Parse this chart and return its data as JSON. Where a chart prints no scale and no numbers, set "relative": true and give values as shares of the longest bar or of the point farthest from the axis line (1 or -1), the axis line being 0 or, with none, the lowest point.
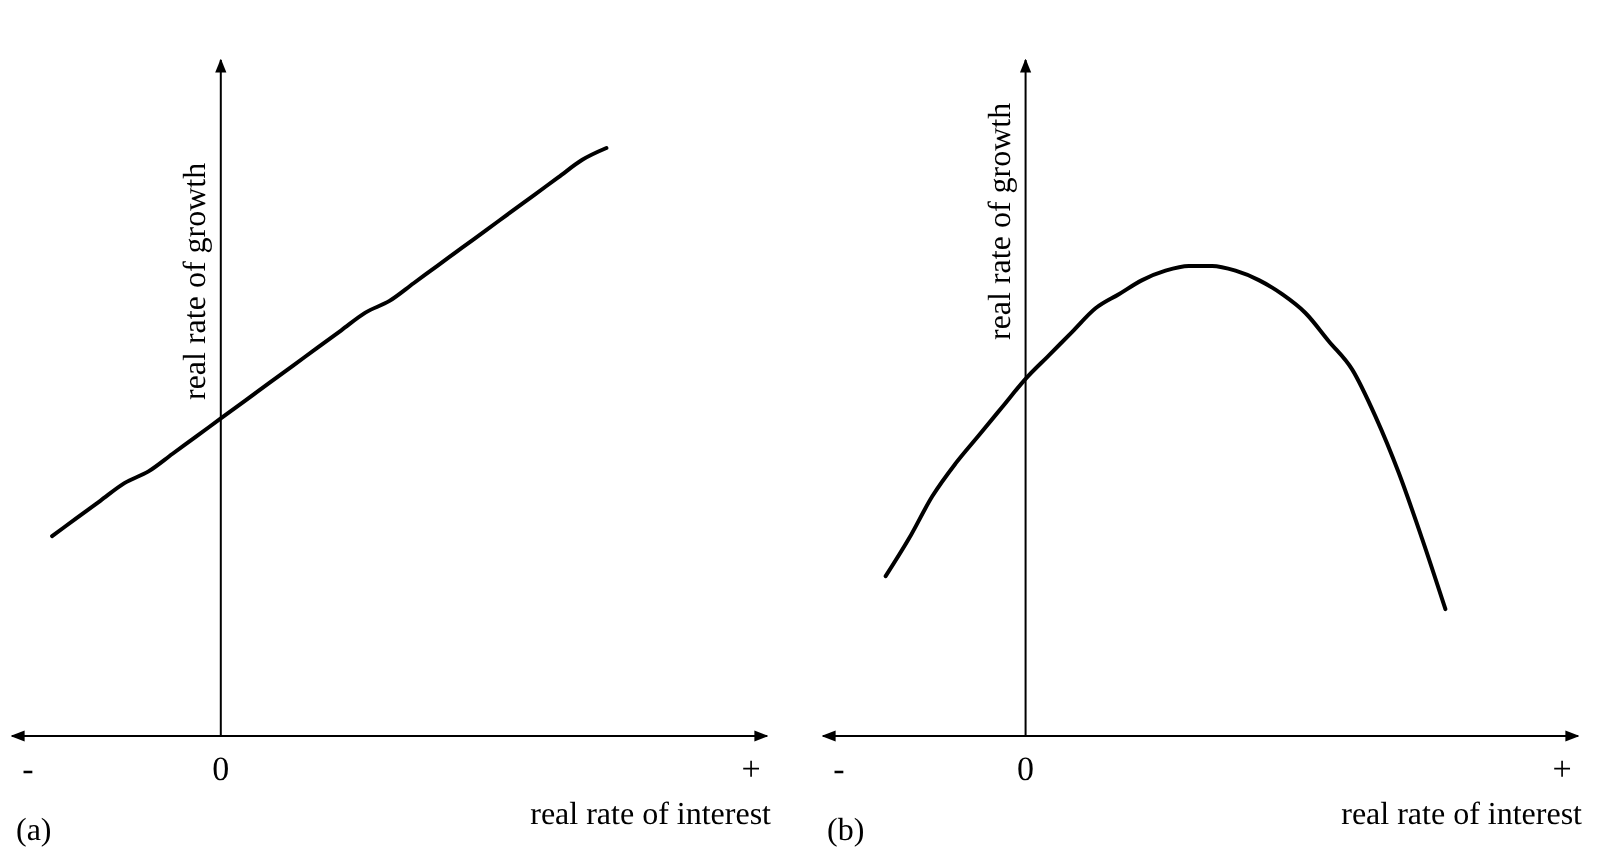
{
  "chart_data": [
    {
      "type": "line",
      "relative": true,
      "xlabel": "real rate of interest",
      "ylabel": "real rate of growth",
      "tick_labels": "x",
      "categories": [
        "-",
        null,
        null,
        null,
        null,
        null,
        null,
        null,
        "0",
        null,
        null,
        null,
        null,
        null,
        null,
        null,
        null,
        null,
        null,
        null,
        null,
        null,
        null,
        null,
        null,
        null,
        null,
        null,
        null,
        null,
        "+"
      ],
      "series": [
        {
          "color": "#000000",
          "values": [
            null,
            0.34,
            0.37,
            0.4,
            0.43,
            0.45,
            0.48,
            0.51,
            0.54,
            0.57,
            0.6,
            0.63,
            0.66,
            0.69,
            0.72,
            0.74,
            0.77,
            0.8,
            0.83,
            0.86,
            0.89,
            0.92,
            0.95,
            0.98,
            1.0,
            null,
            null,
            null,
            null,
            null,
            null
          ]
        }
      ],
      "annotations": [
        "(a)"
      ]
    },
    {
      "type": "line",
      "relative": true,
      "xlabel": "real rate of interest",
      "ylabel": "real rate of growth",
      "tick_labels": "x",
      "categories": [
        "-",
        null,
        null,
        null,
        null,
        null,
        null,
        null,
        "0",
        null,
        null,
        null,
        null,
        null,
        null,
        null,
        null,
        null,
        null,
        null,
        null,
        null,
        null,
        null,
        null,
        null,
        null,
        null,
        null,
        null,
        null,
        "+"
      ],
      "series": [
        {
          "color": "#000000",
          "values": [
            null,
            null,
            0.34,
            0.42,
            0.51,
            0.58,
            0.64,
            0.7,
            0.76,
            0.81,
            0.86,
            0.91,
            0.94,
            0.97,
            0.99,
            1.0,
            1.0,
            0.99,
            0.97,
            0.94,
            0.9,
            0.84,
            0.78,
            0.68,
            0.56,
            0.42,
            0.27,
            null,
            null,
            null,
            null,
            null
          ]
        }
      ],
      "annotations": [
        "(b)"
      ]
    }
  ]
}
